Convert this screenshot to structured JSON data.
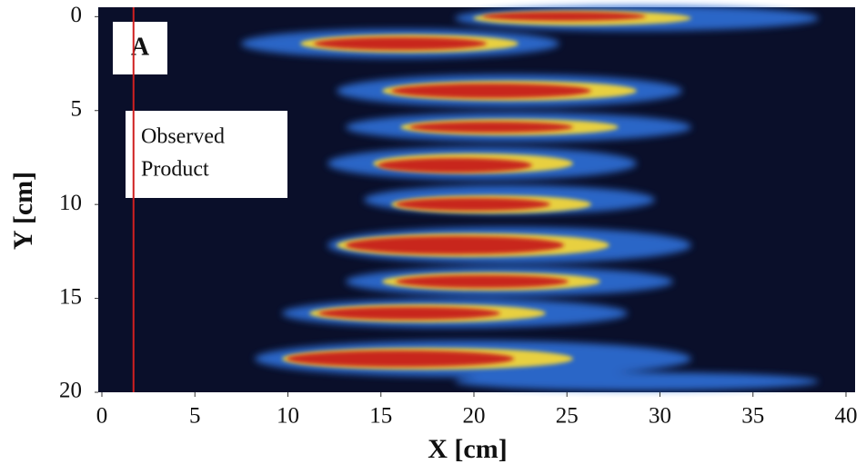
{
  "chart_data": {
    "type": "heatmap",
    "panel_label": "A",
    "annotation": [
      "Observed",
      "Product"
    ],
    "x_label": "X [cm]",
    "y_label": "Y [cm]",
    "xlim": [
      0,
      40
    ],
    "xticks": [
      0,
      5,
      10,
      15,
      20,
      25,
      30,
      35,
      40
    ],
    "ylim": [
      -0.5,
      20
    ],
    "yticks": [
      0,
      5,
      10,
      15,
      20
    ],
    "y_inverted": true,
    "background": "#0a0f2a",
    "reference_line": {
      "x": 1.7,
      "color": "#d02020"
    }
  }
}
